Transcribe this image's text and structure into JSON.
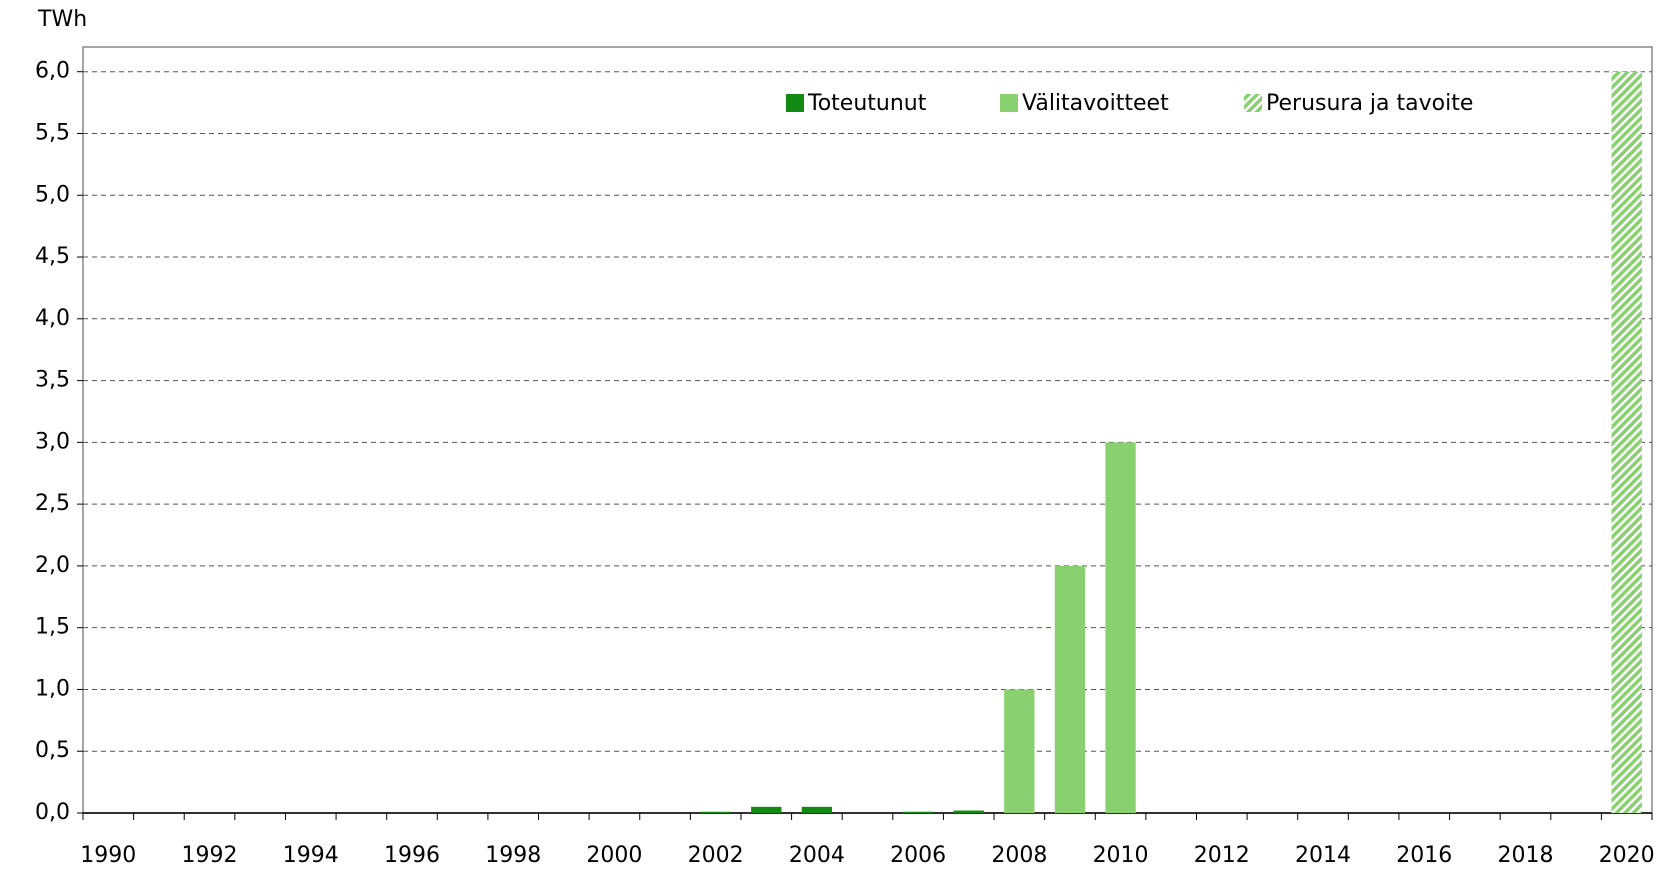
{
  "chart_data": {
    "type": "bar",
    "y_axis_label": "TWh",
    "categories": [
      "1990",
      null,
      "1992",
      null,
      "1994",
      null,
      "1996",
      null,
      "1998",
      null,
      "2000",
      null,
      "2002",
      null,
      "2004",
      null,
      "2006",
      null,
      "2008",
      null,
      "2010",
      null,
      "2012",
      null,
      "2014",
      null,
      "2016",
      null,
      "2018",
      null,
      "2020"
    ],
    "series": [
      {
        "name": "Toteutunut",
        "color": "#138a13",
        "hatch": false,
        "values": [
          null,
          null,
          null,
          null,
          null,
          null,
          null,
          null,
          null,
          null,
          null,
          null,
          0.01,
          0.05,
          0.05,
          null,
          0.01,
          0.02,
          null,
          null,
          null,
          null,
          null,
          null,
          null,
          null,
          null,
          null,
          null,
          null,
          null
        ]
      },
      {
        "name": "Välitavoitteet",
        "color": "#88d070",
        "hatch": false,
        "values": [
          null,
          null,
          null,
          null,
          null,
          null,
          null,
          null,
          null,
          null,
          null,
          null,
          null,
          null,
          null,
          null,
          null,
          null,
          1,
          2,
          3,
          null,
          null,
          null,
          null,
          null,
          null,
          null,
          null,
          null,
          null
        ]
      },
      {
        "name": "Perusura ja tavoite",
        "color": "#88d070",
        "hatch": true,
        "values": [
          null,
          null,
          null,
          null,
          null,
          null,
          null,
          null,
          null,
          null,
          null,
          null,
          null,
          null,
          null,
          null,
          null,
          null,
          null,
          null,
          null,
          null,
          null,
          null,
          null,
          null,
          null,
          null,
          null,
          null,
          6
        ]
      }
    ],
    "ylim": [
      0,
      6.2
    ],
    "yticks": [
      {
        "value": 0,
        "label": "0,0"
      },
      {
        "value": 0.5,
        "label": "0,5"
      },
      {
        "value": 1,
        "label": "1,0"
      },
      {
        "value": 1.5,
        "label": "1,5"
      },
      {
        "value": 2,
        "label": "2,0"
      },
      {
        "value": 2.5,
        "label": "2,5"
      },
      {
        "value": 3,
        "label": "3,0"
      },
      {
        "value": 3.5,
        "label": "3,5"
      },
      {
        "value": 4,
        "label": "4,0"
      },
      {
        "value": 4.5,
        "label": "4,5"
      },
      {
        "value": 5,
        "label": "5,0"
      },
      {
        "value": 5.5,
        "label": "5,5"
      },
      {
        "value": 6,
        "label": "6,0"
      }
    ],
    "grid": true,
    "legend": "top"
  }
}
